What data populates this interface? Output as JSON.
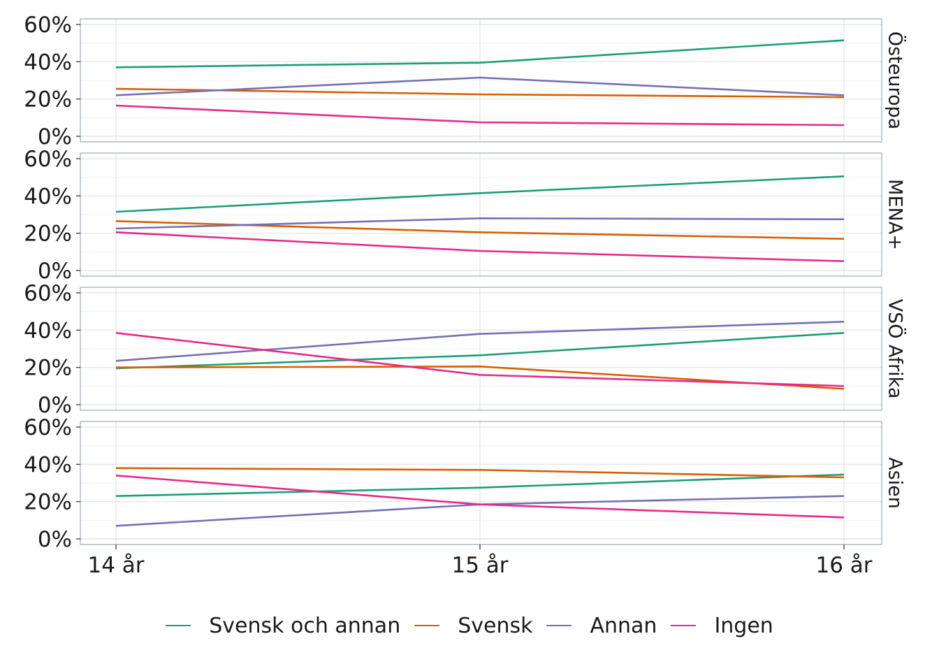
{
  "chart_data": {
    "type": "line",
    "x": [
      "14 år",
      "15 år",
      "16 år"
    ],
    "ylim": [
      0,
      60
    ],
    "y_ticks": [
      "0%",
      "20%",
      "40%",
      "60%"
    ],
    "grid": true,
    "legend_position": "bottom",
    "colors": {
      "Svensk och annan": "#1b9e77",
      "Svensk": "#d95f02",
      "Annan": "#7570b3",
      "Ingen": "#e7298a"
    },
    "legend": [
      "Svensk och annan",
      "Svensk",
      "Annan",
      "Ingen"
    ],
    "panels": [
      {
        "label": "Östeuropa",
        "series": [
          {
            "name": "Svensk och annan",
            "values": [
              37,
              39.5,
              51.5
            ]
          },
          {
            "name": "Svensk",
            "values": [
              25.5,
              22.5,
              21
            ]
          },
          {
            "name": "Annan",
            "values": [
              22,
              31.5,
              22
            ]
          },
          {
            "name": "Ingen",
            "values": [
              16.5,
              7.5,
              6
            ]
          }
        ]
      },
      {
        "label": "MENA+",
        "series": [
          {
            "name": "Svensk och annan",
            "values": [
              31.5,
              41.5,
              50.5
            ]
          },
          {
            "name": "Svensk",
            "values": [
              26.5,
              20.5,
              17
            ]
          },
          {
            "name": "Annan",
            "values": [
              22.5,
              28,
              27.5
            ]
          },
          {
            "name": "Ingen",
            "values": [
              20.5,
              10.5,
              5
            ]
          }
        ]
      },
      {
        "label": "VSÖ Afrika",
        "series": [
          {
            "name": "Svensk och annan",
            "values": [
              19.5,
              26.5,
              38.5
            ]
          },
          {
            "name": "Svensk",
            "values": [
              20,
              20.5,
              8.5
            ]
          },
          {
            "name": "Annan",
            "values": [
              23.5,
              38,
              44.5
            ]
          },
          {
            "name": "Ingen",
            "values": [
              38.5,
              16,
              10
            ]
          }
        ]
      },
      {
        "label": "Asien",
        "series": [
          {
            "name": "Svensk och annan",
            "values": [
              23,
              27.5,
              34.5
            ]
          },
          {
            "name": "Svensk",
            "values": [
              38,
              37,
              33
            ]
          },
          {
            "name": "Annan",
            "values": [
              7,
              18.5,
              23
            ]
          },
          {
            "name": "Ingen",
            "values": [
              34,
              18.5,
              11.5
            ]
          }
        ]
      }
    ]
  }
}
